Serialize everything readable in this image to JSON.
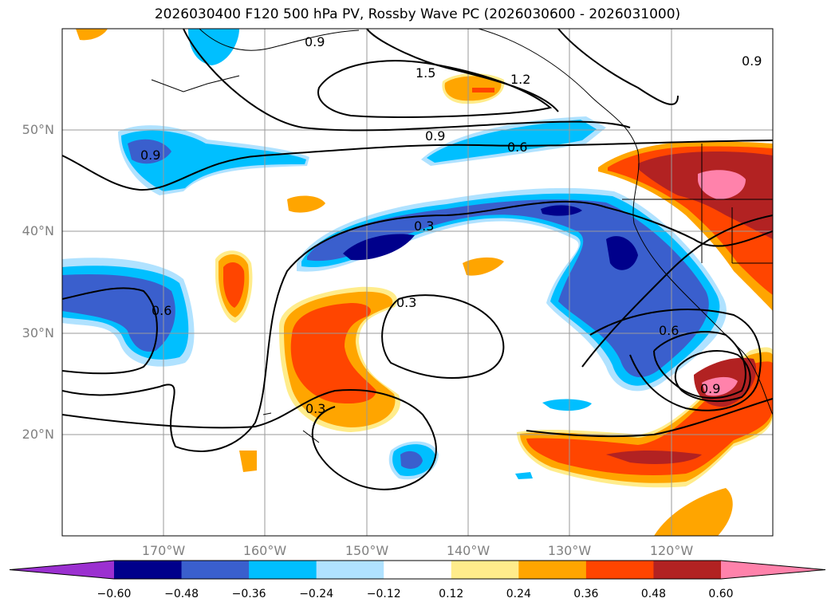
{
  "title": "2026030400 F120 500 hPa PV, Rossby Wave PC (2026030600 - 2026031000)",
  "lat_labels": [
    "50°N",
    "40°N",
    "30°N",
    "20°N"
  ],
  "lon_labels": [
    "170°W",
    "160°W",
    "150°W",
    "140°W",
    "130°W",
    "120°W"
  ],
  "contour_labels": [
    "0.9",
    "1.5",
    "1.2",
    "0.9",
    "0.6",
    "0.9",
    "0.3",
    "0.6",
    "0.3",
    "0.3",
    "0.6",
    "0.9",
    "0.9"
  ],
  "colorbar": {
    "ticks": [
      "−0.60",
      "−0.48",
      "−0.36",
      "−0.24",
      "−0.12",
      "0.12",
      "0.24",
      "0.36",
      "0.48",
      "0.60"
    ],
    "colors": [
      "#9b30d0",
      "#00008b",
      "#3a5fcd",
      "#00bfff",
      "#b0e2ff",
      "#ffffff",
      "#ffec8b",
      "#ffa500",
      "#ff4500",
      "#b22222",
      "#ff82ab"
    ]
  },
  "colors": {
    "strong_neg": "#00008b",
    "mod_neg": "#3a5fcd",
    "weak_neg": "#00bfff",
    "vweak_neg": "#b0e2ff",
    "vweak_pos": "#ffec8b",
    "weak_pos": "#ffa500",
    "mod_pos": "#ff4500",
    "strong_pos": "#b22222",
    "vstrong_pos": "#ff82ab"
  }
}
